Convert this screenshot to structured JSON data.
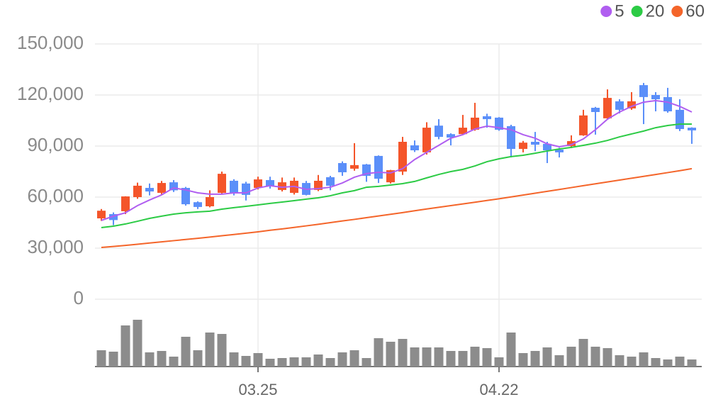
{
  "chart_data": {
    "type": "candlestick",
    "categories": [
      null,
      null,
      null,
      null,
      null,
      null,
      null,
      null,
      null,
      null,
      null,
      null,
      null,
      "03.25",
      null,
      null,
      null,
      null,
      null,
      null,
      null,
      null,
      null,
      null,
      null,
      null,
      null,
      null,
      null,
      null,
      null,
      null,
      null,
      "04.22",
      null,
      null,
      null,
      null,
      null,
      null,
      null,
      null,
      null,
      null,
      null,
      null,
      null,
      null,
      null,
      null
    ],
    "open": [
      47500,
      50000,
      51700,
      60000,
      65400,
      62500,
      68700,
      65400,
      57000,
      54600,
      62500,
      69600,
      68000,
      65400,
      70000,
      64200,
      62500,
      68300,
      64200,
      71700,
      80000,
      76700,
      79200,
      84200,
      68700,
      75000,
      90400,
      86300,
      102000,
      97000,
      97000,
      99600,
      107500,
      106700,
      101700,
      88300,
      92500,
      91300,
      87900,
      90000,
      96300,
      112500,
      106300,
      116300,
      112100,
      125800,
      120000,
      118800,
      111300,
      100800
    ],
    "high": [
      53000,
      51000,
      60500,
      68500,
      68000,
      69500,
      70000,
      66000,
      57500,
      64000,
      75000,
      70500,
      69000,
      72000,
      72000,
      71500,
      71500,
      69500,
      73000,
      72500,
      81000,
      91700,
      79500,
      84500,
      76000,
      95400,
      93300,
      104000,
      105800,
      97500,
      108300,
      115400,
      109000,
      107000,
      102500,
      93000,
      98300,
      92500,
      89000,
      96300,
      111300,
      113000,
      123300,
      117500,
      121700,
      127100,
      121700,
      124200,
      117500,
      101000
    ],
    "low": [
      46000,
      43500,
      50000,
      59000,
      61000,
      61500,
      63000,
      55000,
      53000,
      54000,
      62000,
      61000,
      58000,
      64500,
      65000,
      63300,
      61500,
      61000,
      63500,
      64000,
      72500,
      75500,
      69000,
      68300,
      68000,
      73000,
      86500,
      85000,
      94000,
      90400,
      96500,
      99000,
      100800,
      99000,
      83300,
      86300,
      87000,
      80000,
      83300,
      88800,
      96000,
      96700,
      105800,
      109200,
      111300,
      102900,
      110400,
      109600,
      98800,
      91300
    ],
    "close": [
      52000,
      46500,
      60400,
      66700,
      63300,
      68300,
      64000,
      55800,
      54200,
      60000,
      73700,
      62500,
      61300,
      70400,
      66300,
      68700,
      69600,
      61300,
      69600,
      66700,
      74600,
      78800,
      72500,
      70800,
      75800,
      92500,
      87500,
      100800,
      95400,
      95000,
      100800,
      106700,
      105800,
      99600,
      88300,
      92000,
      90800,
      87500,
      86300,
      92900,
      108000,
      110000,
      118300,
      111300,
      116300,
      118800,
      117500,
      110400,
      100000,
      99200
    ],
    "up_color": "#f4552a",
    "down_color": "#5b8ff9",
    "series": [
      {
        "name": "5",
        "color": "#b05ef0",
        "values": [
          46300,
          48800,
          50800,
          55000,
          58300,
          61300,
          65400,
          64200,
          62500,
          61700,
          61700,
          62500,
          62500,
          65400,
          66700,
          65800,
          66300,
          64600,
          65000,
          65800,
          68300,
          71700,
          73800,
          74600,
          74200,
          76700,
          82100,
          86300,
          90400,
          94600,
          96700,
          100000,
          101700,
          100800,
          99600,
          96700,
          94600,
          91300,
          89600,
          90800,
          94200,
          99600,
          105800,
          110000,
          113300,
          115800,
          116700,
          115800,
          113300,
          110000
        ]
      },
      {
        "name": "20",
        "color": "#2ccb45",
        "values": [
          42100,
          42900,
          44200,
          45800,
          47500,
          48800,
          50000,
          50800,
          51300,
          51700,
          52900,
          53800,
          54600,
          55400,
          56300,
          57100,
          57900,
          58800,
          59600,
          60800,
          62500,
          63800,
          65800,
          66300,
          67100,
          67900,
          69200,
          71300,
          73300,
          75000,
          76300,
          78300,
          80800,
          82500,
          83800,
          84600,
          85800,
          87100,
          88300,
          89200,
          90400,
          91700,
          93300,
          95400,
          97100,
          98800,
          100800,
          102100,
          102900,
          102900
        ]
      },
      {
        "name": "60",
        "color": "#f4652a",
        "values": [
          30400,
          31000,
          31600,
          32300,
          33000,
          33700,
          34400,
          35100,
          35800,
          36500,
          37300,
          38000,
          38800,
          39600,
          40500,
          41300,
          42200,
          43100,
          44000,
          45000,
          46000,
          46900,
          47900,
          48900,
          49900,
          50900,
          52000,
          53000,
          54000,
          55000,
          56000,
          57000,
          58000,
          59000,
          60100,
          61200,
          62300,
          63400,
          64500,
          65600,
          66700,
          67800,
          68900,
          70000,
          71100,
          72200,
          73300,
          74400,
          75500,
          76700
        ]
      }
    ],
    "volume": [
      23,
      21,
      58,
      66,
      20,
      22,
      14,
      42,
      23,
      48,
      46,
      20,
      15,
      19,
      11,
      12,
      13,
      13,
      17,
      12,
      20,
      23,
      12,
      40,
      35,
      39,
      27,
      27,
      27,
      22,
      22,
      28,
      26,
      13,
      48,
      19,
      22,
      27,
      16,
      28,
      39,
      28,
      26,
      16,
      14,
      20,
      12,
      10,
      14,
      10
    ],
    "volume_color": "#8c8c8c",
    "ylim": [
      0,
      150000
    ],
    "yticks": [
      0,
      {
        "value": 30000,
        "label": "30,000"
      },
      {
        "value": 60000,
        "label": "60,000"
      },
      {
        "value": 90000,
        "label": "90,000"
      },
      {
        "value": 120000,
        "label": "120,000"
      },
      {
        "value": 150000,
        "label": "150,000"
      }
    ],
    "grid": true
  }
}
